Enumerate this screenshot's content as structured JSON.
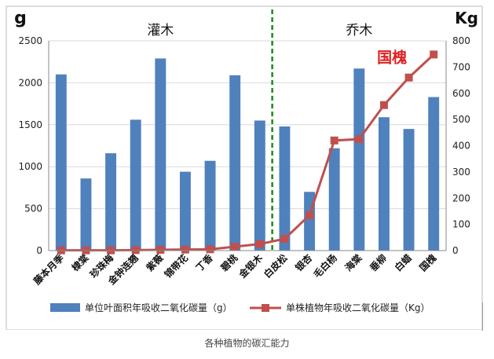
{
  "chart_data": {
    "type": "bar+line",
    "categories": [
      "藤本月季",
      "棣棠",
      "珍珠梅",
      "金钟连翘",
      "紫薇",
      "锦带花",
      "丁香",
      "碧桃",
      "金银木",
      "白皮松",
      "银杏",
      "毛白杨",
      "海棠",
      "垂柳",
      "白蜡",
      "国槐"
    ],
    "groups": [
      {
        "label": "灌木",
        "from": 0,
        "to": 8
      },
      {
        "label": "乔木",
        "from": 9,
        "to": 15
      }
    ],
    "left_axis": {
      "unit": "g",
      "ylim": [
        0,
        2500
      ],
      "ticks": [
        "0",
        "500",
        "1000",
        "1500",
        "2000",
        "2500"
      ]
    },
    "right_axis": {
      "unit": "Kg",
      "ylim": [
        0,
        800
      ],
      "ticks": [
        "0",
        "100",
        "200",
        "300",
        "400",
        "500",
        "600",
        "700",
        "800"
      ]
    },
    "series": [
      {
        "name": "单位叶面积年吸收二氧化碳量（g）",
        "type": "bar",
        "axis": "left",
        "color": "#4f81bd",
        "values": [
          2100,
          860,
          1160,
          1560,
          2290,
          940,
          1070,
          2090,
          1550,
          1480,
          700,
          1220,
          2170,
          1590,
          1450,
          1830
        ]
      },
      {
        "name": "单株植物年吸收二氧化碳量（Kg）",
        "type": "line",
        "axis": "right",
        "color": "#c0504d",
        "values": [
          1,
          1,
          1,
          2,
          3,
          4,
          5,
          15,
          25,
          45,
          135,
          420,
          425,
          555,
          660,
          748
        ]
      }
    ],
    "annotation": {
      "text": "国槐",
      "color": "#e02020"
    },
    "grid": true,
    "legend": "bottom"
  },
  "caption": "各种植物的碳汇能力"
}
